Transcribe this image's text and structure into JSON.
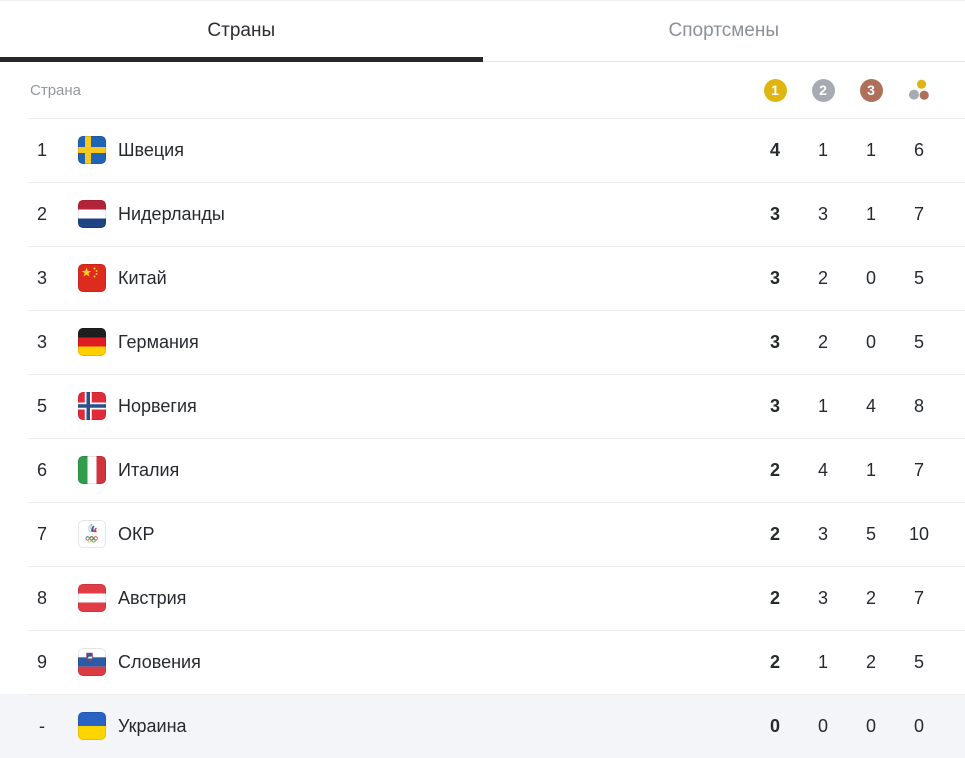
{
  "tabs": [
    {
      "label": "Страны",
      "active": true
    },
    {
      "label": "Спортсмены",
      "active": false
    }
  ],
  "table": {
    "country_header": "Страна",
    "medal_columns": [
      {
        "name": "gold-medal-icon",
        "label": "1",
        "color": "#dfb512"
      },
      {
        "name": "silver-medal-icon",
        "label": "2",
        "color": "#a6abb3"
      },
      {
        "name": "bronze-medal-icon",
        "label": "3",
        "color": "#b06f5a"
      },
      {
        "name": "total-medals-icon",
        "colors": [
          "#dfb512",
          "#a6abb3",
          "#b06f5a"
        ]
      }
    ],
    "rows": [
      {
        "rank": "1",
        "country": "Швеция",
        "flag": "se",
        "gold": "4",
        "silver": "1",
        "bronze": "1",
        "total": "6",
        "highlight": false
      },
      {
        "rank": "2",
        "country": "Нидерланды",
        "flag": "nl",
        "gold": "3",
        "silver": "3",
        "bronze": "1",
        "total": "7",
        "highlight": false
      },
      {
        "rank": "3",
        "country": "Китай",
        "flag": "cn",
        "gold": "3",
        "silver": "2",
        "bronze": "0",
        "total": "5",
        "highlight": false
      },
      {
        "rank": "3",
        "country": "Германия",
        "flag": "de",
        "gold": "3",
        "silver": "2",
        "bronze": "0",
        "total": "5",
        "highlight": false
      },
      {
        "rank": "5",
        "country": "Норвегия",
        "flag": "no",
        "gold": "3",
        "silver": "1",
        "bronze": "4",
        "total": "8",
        "highlight": false
      },
      {
        "rank": "6",
        "country": "Италия",
        "flag": "it",
        "gold": "2",
        "silver": "4",
        "bronze": "1",
        "total": "7",
        "highlight": false
      },
      {
        "rank": "7",
        "country": "ОКР",
        "flag": "roc",
        "gold": "2",
        "silver": "3",
        "bronze": "5",
        "total": "10",
        "highlight": false
      },
      {
        "rank": "8",
        "country": "Австрия",
        "flag": "at",
        "gold": "2",
        "silver": "3",
        "bronze": "2",
        "total": "7",
        "highlight": false
      },
      {
        "rank": "9",
        "country": "Словения",
        "flag": "si",
        "gold": "2",
        "silver": "1",
        "bronze": "2",
        "total": "5",
        "highlight": false
      },
      {
        "rank": "-",
        "country": "Украина",
        "flag": "ua",
        "gold": "0",
        "silver": "0",
        "bronze": "0",
        "total": "0",
        "highlight": true
      }
    ]
  },
  "colors": {
    "active_tab_text": "#2b2e33",
    "inactive_tab_text": "#8b9097",
    "active_tab_underline": "#26282b",
    "header_text": "#94989f",
    "row_text": "#26292e",
    "divider": "#ececec",
    "highlight_row_bg": "#f3f5f8"
  }
}
